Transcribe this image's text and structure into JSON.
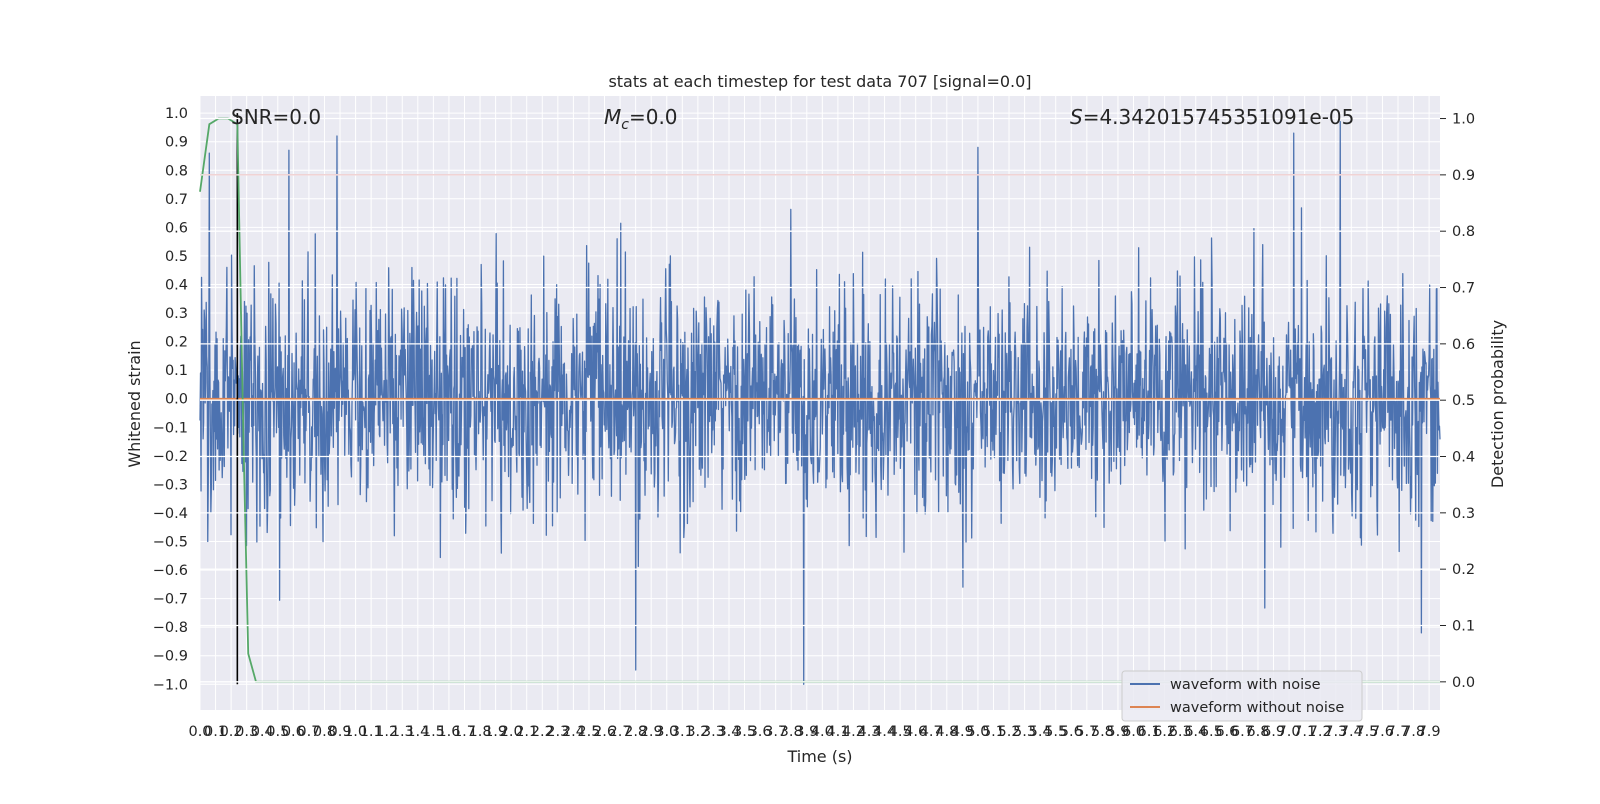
{
  "chart_data": {
    "type": "line",
    "title": "stats at each timestep for test data 707 [signal=0.0]",
    "xlabel": "Time (s)",
    "ylabel_left": "Whitened strain",
    "ylabel_right": "Detection probability",
    "xlim": [
      0.0,
      7.97
    ],
    "ylim_left": [
      -1.09,
      1.06
    ],
    "ylim_right": [
      -0.05,
      1.04
    ],
    "x_ticks": [
      "0.0",
      "0.1",
      "0.2",
      "0.3",
      "0.4",
      "0.5",
      "0.6",
      "0.7",
      "0.8",
      "0.9",
      "1.0",
      "1.1",
      "1.2",
      "1.3",
      "1.4",
      "1.5",
      "1.6",
      "1.7",
      "1.8",
      "1.9",
      "2.0",
      "2.1",
      "2.2",
      "2.3",
      "2.4",
      "2.5",
      "2.6",
      "2.7",
      "2.8",
      "2.9",
      "3.0",
      "3.1",
      "3.2",
      "3.3",
      "3.4",
      "3.5",
      "3.6",
      "3.7",
      "3.8",
      "3.9",
      "4.0",
      "4.1",
      "4.2",
      "4.3",
      "4.4",
      "4.5",
      "4.6",
      "4.7",
      "4.8",
      "4.9",
      "5.0",
      "5.1",
      "5.2",
      "5.3",
      "5.4",
      "5.5",
      "5.6",
      "5.7",
      "5.8",
      "5.9",
      "6.0",
      "6.1",
      "6.2",
      "6.3",
      "6.4",
      "6.5",
      "6.6",
      "6.7",
      "6.8",
      "6.9",
      "7.0",
      "7.1",
      "7.2",
      "7.3",
      "7.4",
      "7.5",
      "7.6",
      "7.7",
      "7.8",
      "7.9"
    ],
    "y_ticks_left": [
      "1.0",
      "0.9",
      "0.8",
      "0.7",
      "0.6",
      "0.5",
      "0.4",
      "0.3",
      "0.2",
      "0.1",
      "0.0",
      "−0.1",
      "−0.2",
      "−0.3",
      "−0.4",
      "−0.5",
      "−0.6",
      "−0.7",
      "−0.8",
      "−0.9",
      "−1.0"
    ],
    "y_ticks_right": [
      "1.0",
      "0.9",
      "0.8",
      "0.7",
      "0.6",
      "0.5",
      "0.4",
      "0.3",
      "0.2",
      "0.1",
      "0.0"
    ],
    "annotations": {
      "snr": "SNR=0.0",
      "mc_symbol": "M",
      "mc_subscript": "c",
      "mc_value": "=0.0",
      "s_symbol": "S",
      "s_value": "=4.342015745351091e-05"
    },
    "series": [
      {
        "name": "waveform with noise",
        "color": "#4c72b0",
        "axis": "left",
        "noise_sigma": 0.2,
        "extremes": [
          [
            0.06,
            0.86
          ],
          [
            0.57,
            0.87
          ],
          [
            0.88,
            0.92
          ],
          [
            3.88,
            -1.0
          ],
          [
            5.0,
            0.88
          ],
          [
            7.03,
            0.93
          ],
          [
            7.33,
            0.97
          ],
          [
            2.8,
            -0.95
          ],
          [
            0.05,
            -0.5
          ],
          [
            7.85,
            -0.82
          ]
        ]
      },
      {
        "name": "waveform without noise",
        "color": "#dd8452",
        "axis": "left",
        "y": 0.0
      },
      {
        "name": "detection probability",
        "color": "#55a868",
        "axis": "right",
        "x": [
          0.0,
          0.06,
          0.12,
          0.18,
          0.24,
          0.28,
          0.31,
          0.36,
          7.97
        ],
        "y": [
          0.87,
          0.99,
          1.0,
          1.0,
          0.99,
          0.42,
          0.05,
          0.0,
          0.0
        ]
      }
    ],
    "threshold": {
      "color": "#c44e52",
      "axis": "right",
      "y": 0.9
    },
    "marker_time": {
      "color": "#000000",
      "x": 0.24
    },
    "grid": true,
    "legend_position": "lower-right",
    "legend": [
      "waveform with noise",
      "waveform without noise"
    ]
  }
}
